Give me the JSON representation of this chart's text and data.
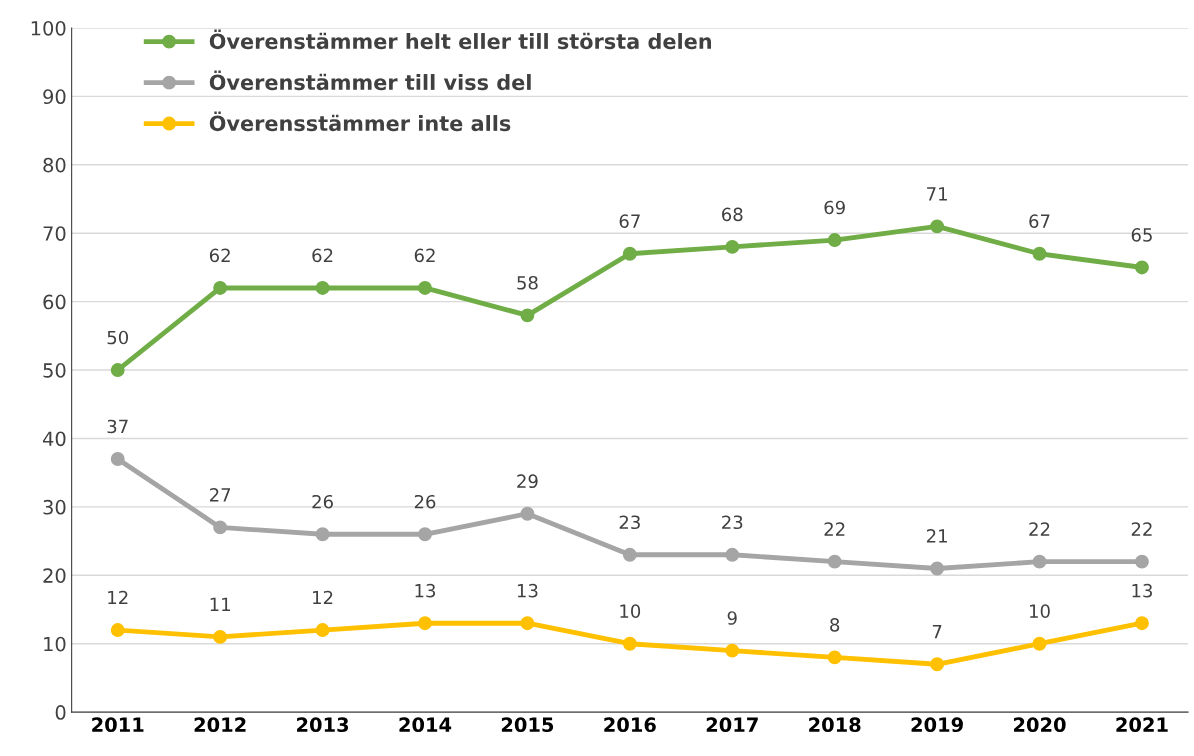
{
  "chart_data": {
    "type": "line",
    "categories": [
      "2011",
      "2012",
      "2013",
      "2014",
      "2015",
      "2016",
      "2017",
      "2018",
      "2019",
      "2020",
      "2021"
    ],
    "series": [
      {
        "name": "Överenstämmer helt eller till största delen",
        "color": "#70ad47",
        "values": [
          50,
          62,
          62,
          62,
          58,
          67,
          68,
          69,
          71,
          67,
          65
        ]
      },
      {
        "name": "Överenstämmer till viss del",
        "color": "#a5a5a5",
        "values": [
          37,
          27,
          26,
          26,
          29,
          23,
          23,
          22,
          21,
          22,
          22
        ]
      },
      {
        "name": "Överensstämmer inte alls",
        "color": "#ffc000",
        "values": [
          12,
          11,
          12,
          13,
          13,
          10,
          9,
          8,
          7,
          10,
          13
        ]
      }
    ],
    "ylim": [
      0,
      100
    ],
    "yticks": [
      0,
      10,
      20,
      30,
      40,
      50,
      60,
      70,
      80,
      90,
      100
    ],
    "grid": "y",
    "legend": "top left",
    "marker": "circle",
    "line_style": "solid",
    "data_labels": true
  }
}
